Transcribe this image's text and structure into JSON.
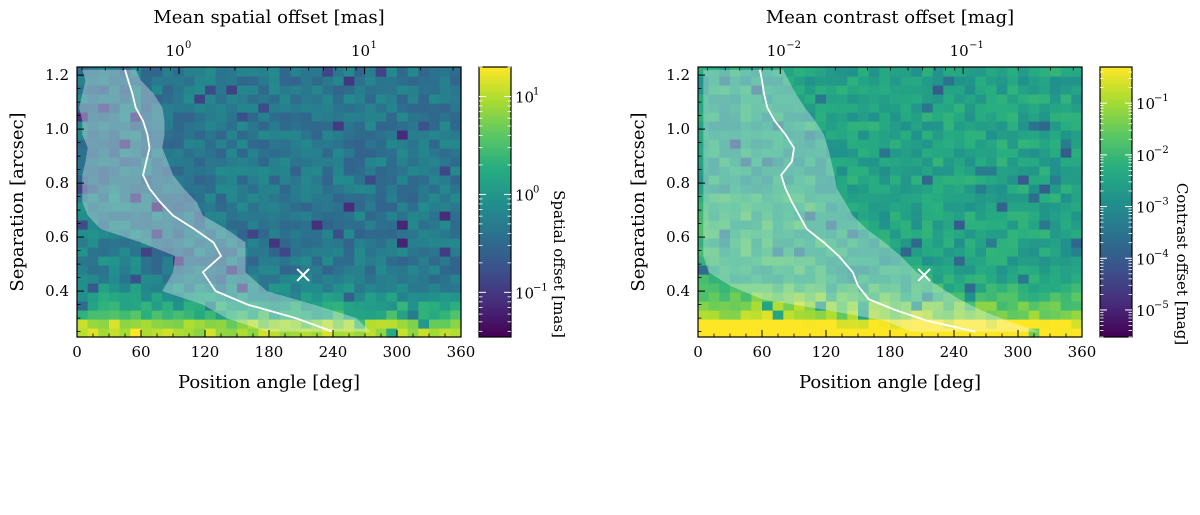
{
  "chart_data": [
    {
      "type": "heatmap",
      "panel": "left",
      "xlabel": "Position angle [deg]",
      "ylabel": "Separation [arcsec]",
      "top_xlabel": "Mean spatial offset [mas]",
      "xlim": [
        0,
        360
      ],
      "ylim": [
        0.23,
        1.23
      ],
      "xticks": [
        "0",
        "60",
        "120",
        "180",
        "240",
        "300",
        "360"
      ],
      "yticks": [
        "0.4",
        "0.6",
        "0.8",
        "1.0",
        "1.2"
      ],
      "top_ticks": [
        {
          "base": "10",
          "exp": "0",
          "value": 1
        },
        {
          "base": "10",
          "exp": "1",
          "value": 10
        }
      ],
      "top_range_log": [
        -0.55,
        1.52
      ],
      "colorbar": {
        "label": "Spatial offset [mas]",
        "scale": "log",
        "range": [
          0.035,
          20
        ],
        "ticks": [
          {
            "base": "10",
            "exp": "−1",
            "value": 0.1
          },
          {
            "base": "10",
            "exp": "0",
            "value": 1
          },
          {
            "base": "10",
            "exp": "1",
            "value": 10
          }
        ]
      },
      "mean_curve": {
        "separation": [
          0.25,
          0.3,
          0.35,
          0.4,
          0.47,
          0.53,
          0.58,
          0.63,
          0.68,
          0.73,
          0.78,
          0.83,
          0.88,
          0.93,
          0.98,
          1.03,
          1.08,
          1.13,
          1.18,
          1.22
        ],
        "pa_mean": [
          240,
          205,
          160,
          130,
          118,
          135,
          128,
          110,
          90,
          78,
          68,
          62,
          65,
          68,
          66,
          62,
          55,
          52,
          48,
          45
        ],
        "pa_low": [
          178,
          140,
          118,
          80,
          90,
          92,
          60,
          22,
          10,
          5,
          5,
          5,
          8,
          10,
          5,
          5,
          2,
          5,
          8,
          5
        ],
        "pa_high": [
          275,
          262,
          222,
          178,
          158,
          158,
          158,
          140,
          118,
          112,
          100,
          90,
          85,
          80,
          82,
          82,
          80,
          72,
          60,
          55
        ]
      },
      "marker": {
        "pa": 212,
        "sep": 0.46,
        "symbol": "×"
      }
    },
    {
      "type": "heatmap",
      "panel": "right",
      "xlabel": "Position angle [deg]",
      "ylabel": "Separation [arcsec]",
      "top_xlabel": "Mean contrast offset [mag]",
      "xlim": [
        0,
        360
      ],
      "ylim": [
        0.23,
        1.23
      ],
      "xticks": [
        "0",
        "60",
        "120",
        "180",
        "240",
        "300",
        "360"
      ],
      "yticks": [
        "0.4",
        "0.6",
        "0.8",
        "1.0",
        "1.2"
      ],
      "top_ticks": [
        {
          "base": "10",
          "exp": "−2",
          "value": 0.01
        },
        {
          "base": "10",
          "exp": "−1",
          "value": 0.1
        }
      ],
      "top_range_log": [
        -2.45,
        -0.35
      ],
      "colorbar": {
        "label": "Contrast offset [mag]",
        "scale": "log",
        "range": [
          3e-06,
          0.5
        ],
        "ticks": [
          {
            "base": "10",
            "exp": "−5",
            "value": 1e-05
          },
          {
            "base": "10",
            "exp": "−4",
            "value": 0.0001
          },
          {
            "base": "10",
            "exp": "−3",
            "value": 0.001
          },
          {
            "base": "10",
            "exp": "−2",
            "value": 0.01
          },
          {
            "base": "10",
            "exp": "−1",
            "value": 0.1
          }
        ]
      },
      "mean_curve": {
        "separation": [
          0.25,
          0.29,
          0.33,
          0.37,
          0.42,
          0.47,
          0.53,
          0.58,
          0.63,
          0.68,
          0.73,
          0.78,
          0.83,
          0.88,
          0.93,
          0.98,
          1.03,
          1.08,
          1.13,
          1.18,
          1.22
        ],
        "pa_mean": [
          260,
          215,
          185,
          160,
          150,
          145,
          132,
          118,
          102,
          95,
          88,
          82,
          78,
          88,
          90,
          82,
          72,
          65,
          62,
          60,
          58
        ],
        "pa_low": [
          200,
          175,
          120,
          60,
          30,
          10,
          5,
          5,
          5,
          5,
          5,
          5,
          5,
          5,
          5,
          5,
          5,
          5,
          5,
          5,
          5
        ],
        "pa_high": [
          320,
          290,
          265,
          245,
          225,
          205,
          190,
          175,
          158,
          145,
          138,
          130,
          128,
          125,
          122,
          118,
          110,
          100,
          92,
          85,
          80
        ]
      },
      "marker": {
        "pa": 212,
        "sep": 0.46,
        "symbol": "×"
      }
    }
  ],
  "colors": {
    "viridis": [
      "#440154",
      "#472c7a",
      "#3b518b",
      "#2c718e",
      "#21908d",
      "#27ad81",
      "#5cc863",
      "#aadc32",
      "#fde725"
    ],
    "overlay": "#ffffff",
    "frame": "#000000"
  }
}
